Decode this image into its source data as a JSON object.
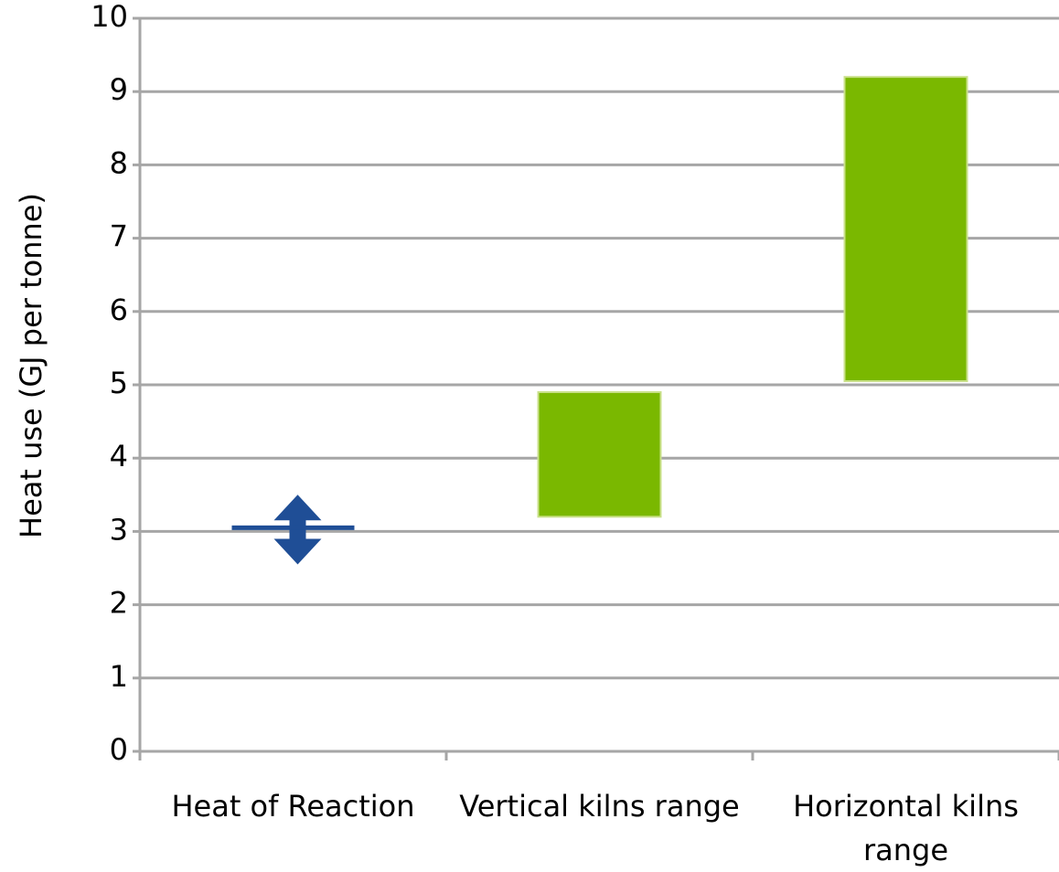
{
  "chart_data": {
    "type": "range",
    "y_label": "Heat use (GJ per tonne)",
    "categories": [
      "Heat of Reaction",
      "Vertical kilns range",
      "Horizontal kilns range"
    ],
    "values": [
      3.05,
      null,
      null
    ],
    "low": [
      2.55,
      3.2,
      5.05
    ],
    "high": [
      3.5,
      4.9,
      9.2
    ],
    "color": "#7ab800",
    "marker_color": "#1f4e96",
    "ylim": [
      0,
      10
    ],
    "yticks": [
      0,
      1,
      2,
      3,
      4,
      5,
      6,
      7,
      8,
      9,
      10
    ],
    "grid": true
  }
}
